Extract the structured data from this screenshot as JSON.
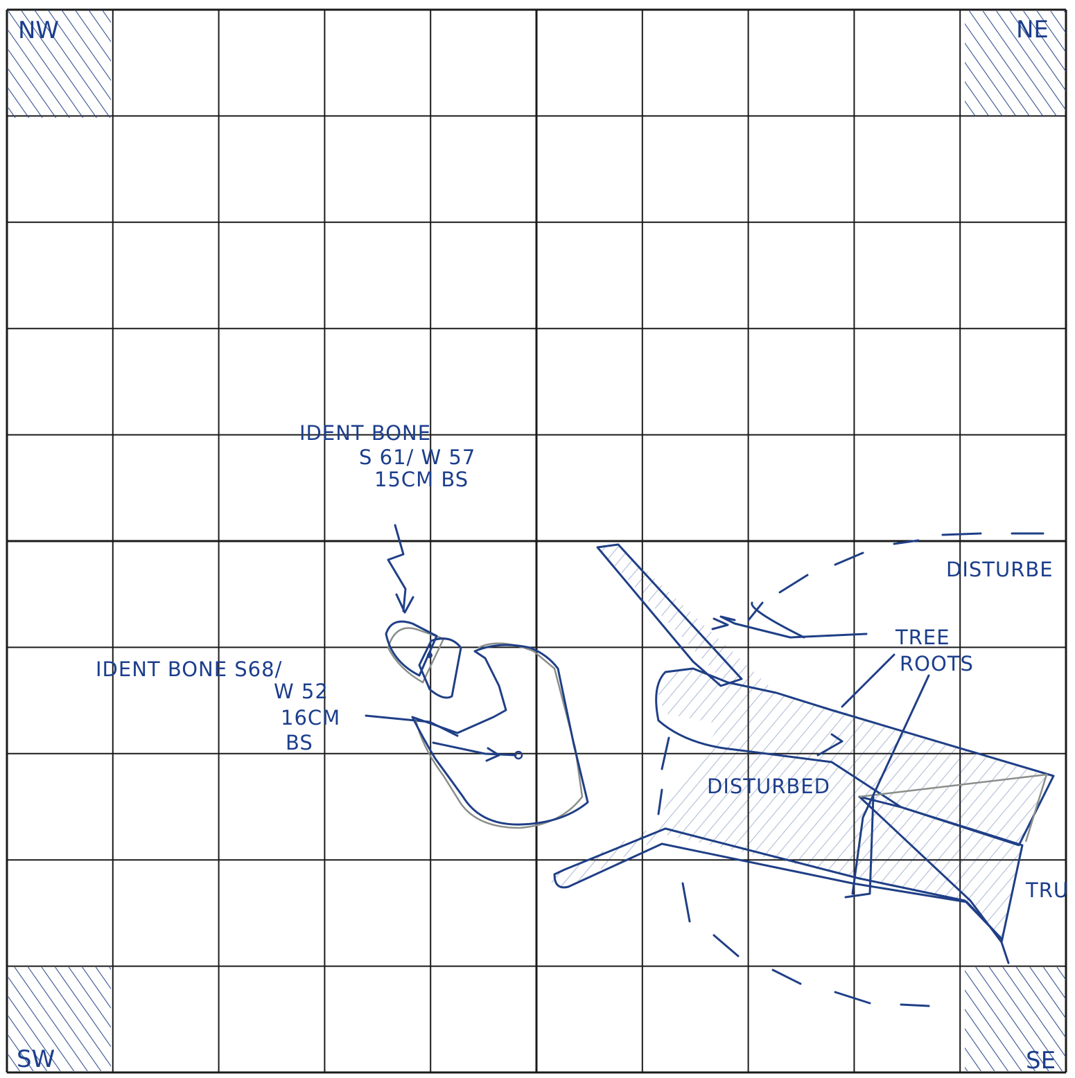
{
  "corners": {
    "nw": "NW",
    "ne": "NE",
    "sw": "SW",
    "se": "SE"
  },
  "annotations": {
    "bone1": {
      "line1": "IDENT BONE",
      "line2": "S 61/ W 57",
      "line3": "15CM BS"
    },
    "bone2": {
      "line1": "IDENT BONE S68/",
      "line2": "W 52",
      "line3": "16CM",
      "line4": "BS"
    },
    "tree_roots": {
      "line1": "TREE",
      "line2": "ROOTS"
    },
    "disturbed_center": "DISTURBED",
    "disturbed_right": "DISTURBE",
    "trunk": "TRU"
  },
  "colors": {
    "ink": "#1f3f86",
    "grid": "#1a1a1a",
    "pencil": "#8a8f8a"
  }
}
